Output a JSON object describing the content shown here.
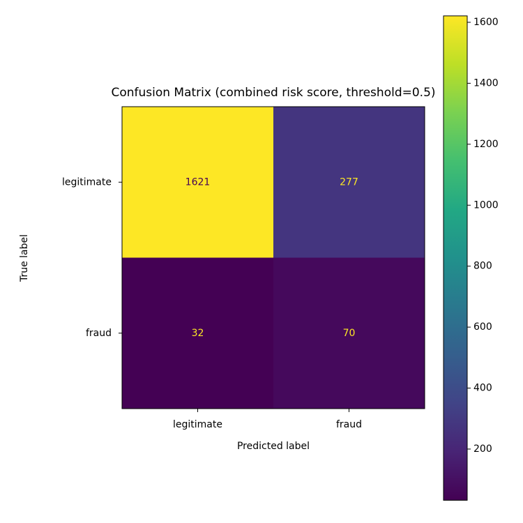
{
  "chart_data": {
    "type": "heatmap",
    "title": "Confusion Matrix (combined risk score, threshold=0.5)",
    "xlabel": "Predicted label",
    "ylabel": "True label",
    "x_categories": [
      "legitimate",
      "fraud"
    ],
    "y_categories": [
      "legitimate",
      "fraud"
    ],
    "values": [
      [
        1621,
        277
      ],
      [
        32,
        70
      ]
    ],
    "colormap": "viridis",
    "clim": [
      32,
      1621
    ],
    "cticks": [
      200,
      400,
      600,
      800,
      1000,
      1200,
      1400,
      1600
    ]
  }
}
